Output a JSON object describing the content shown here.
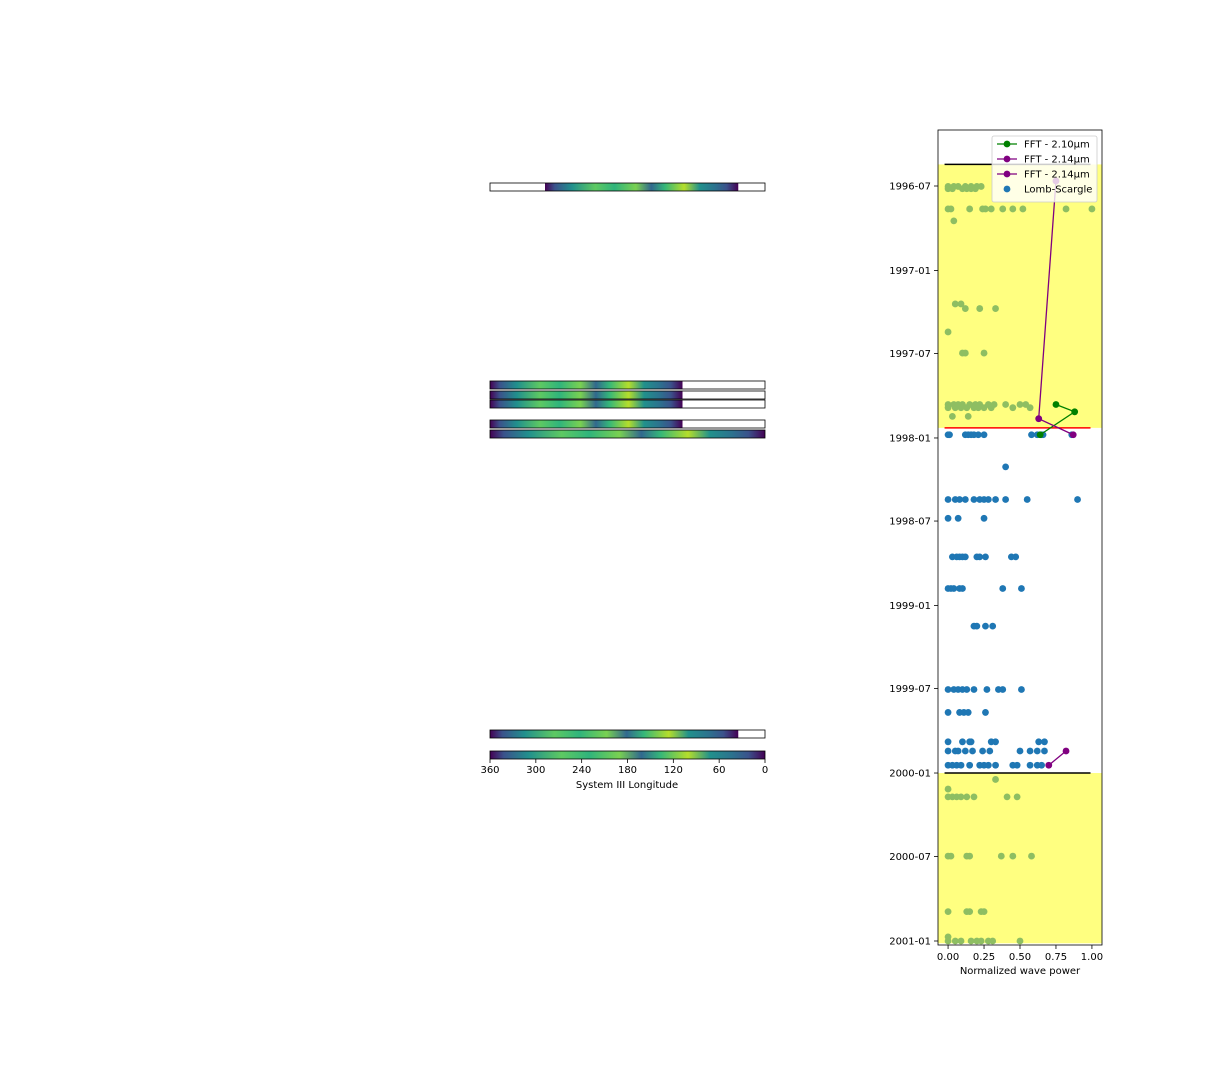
{
  "chart_data": [
    {
      "type": "heatmap",
      "xlabel": "System III Longitude",
      "xlim": [
        360,
        0
      ],
      "xticks": [
        360,
        300,
        240,
        180,
        120,
        60,
        0
      ],
      "colormap": "viridis",
      "strips": [
        {
          "coverage": [
            35,
            288
          ]
        },
        {
          "coverage": [
            108,
            360
          ]
        },
        {
          "coverage": [
            108,
            360
          ]
        },
        {
          "coverage": [
            108,
            360
          ]
        },
        {
          "coverage": [
            108,
            360
          ]
        },
        {
          "coverage": [
            0,
            360
          ]
        },
        {
          "coverage": [
            35,
            360
          ]
        },
        {
          "coverage": [
            0,
            360
          ]
        }
      ]
    },
    {
      "type": "scatter",
      "xlabel": "Normalized wave power",
      "xlim": [
        -0.07,
        1.07
      ],
      "xticks": [
        "0.00",
        "0.25",
        "0.50",
        "0.75",
        "1.00"
      ],
      "yticks": [
        "1996-07",
        "1997-01",
        "1997-07",
        "1998-01",
        "1998-07",
        "1999-01",
        "1999-07",
        "2000-01",
        "2000-07",
        "2001-01"
      ],
      "legend_position": "upper right",
      "shaded_spans": {
        "color": "#ffff80",
        "spans": [
          [
            "1996-05-15",
            "1997-12-10"
          ],
          [
            "2000-01-01",
            "2001-01-06"
          ]
        ]
      },
      "series": [
        {
          "name": "FFT - 2.10µm",
          "type": "line",
          "color": "#008000",
          "points": [
            [
              0.75,
              "1997-10-20"
            ],
            [
              0.88,
              "1997-11-05"
            ],
            [
              0.64,
              "1997-12-25"
            ]
          ]
        },
        {
          "name": "FFT - 2.14µm",
          "type": "line",
          "color": "#800080",
          "points": [
            [
              0.75,
              "1996-06-20"
            ],
            [
              0.63,
              "1997-11-20"
            ],
            [
              0.87,
              "1997-12-25"
            ]
          ]
        },
        {
          "name": "FFT - 2.14µm",
          "type": "line",
          "color": "#800080",
          "points": [
            [
              0.7,
              "1999-12-15"
            ],
            [
              0.82,
              "1999-11-14"
            ]
          ]
        },
        {
          "name": "Lomb-Scargle",
          "type": "scatter",
          "color": "#1f77b4",
          "groups": [
            {
              "date": "1997-12-25",
              "x": [
                0.0,
                0.01,
                0.12,
                0.14,
                0.16,
                0.18,
                0.21,
                0.25,
                0.58,
                0.62,
                0.65,
                0.66,
                0.86
              ]
            },
            {
              "date": "1998-03-05",
              "x": [
                0.4
              ]
            },
            {
              "date": "1998-05-15",
              "x": [
                0.0,
                0.05,
                0.08,
                0.12,
                0.18,
                0.22,
                0.25,
                0.28,
                0.33,
                0.4,
                0.55,
                0.9
              ]
            },
            {
              "date": "1998-06-25",
              "x": [
                0.0,
                0.07,
                0.25
              ]
            },
            {
              "date": "1998-09-17",
              "x": [
                0.03,
                0.06,
                0.08,
                0.1,
                0.12,
                0.2,
                0.22,
                0.26,
                0.44,
                0.47
              ]
            },
            {
              "date": "1998-11-25",
              "x": [
                0.0,
                0.02,
                0.04,
                0.08,
                0.1,
                0.38,
                0.51
              ]
            },
            {
              "date": "1999-02-15",
              "x": [
                0.18,
                0.2,
                0.26,
                0.31
              ]
            },
            {
              "date": "1999-07-03",
              "x": [
                0.0,
                0.04,
                0.07,
                0.1,
                0.13,
                0.18,
                0.27,
                0.35,
                0.38,
                0.51
              ]
            },
            {
              "date": "1999-08-22",
              "x": [
                0.0,
                0.08,
                0.11,
                0.14,
                0.26
              ]
            },
            {
              "date": "1999-10-25",
              "x": [
                0.0,
                0.1,
                0.15,
                0.16,
                0.3,
                0.33,
                0.63,
                0.67
              ]
            },
            {
              "date": "1999-11-14",
              "x": [
                0.0,
                0.05,
                0.07,
                0.12,
                0.17,
                0.24,
                0.29,
                0.5,
                0.57,
                0.62,
                0.67
              ]
            },
            {
              "date": "1999-12-15",
              "x": [
                0.0,
                0.03,
                0.06,
                0.09,
                0.15,
                0.22,
                0.25,
                0.28,
                0.33,
                0.45,
                0.48,
                0.57,
                0.62,
                0.65
              ]
            }
          ]
        },
        {
          "name": "",
          "type": "scatter",
          "color": "#8ebe62",
          "groups": [
            {
              "date": "1996-07-02",
              "x": [
                0.0,
                0.04,
                0.07,
                0.12,
                0.16,
                0.2,
                0.23
              ]
            },
            {
              "date": "1996-07-07",
              "x": [
                0.0,
                0.03,
                0.1,
                0.13,
                0.16,
                0.19
              ]
            },
            {
              "date": "1996-08-20",
              "x": [
                0.0,
                0.02,
                0.15,
                0.24,
                0.26,
                0.3,
                0.38,
                0.45,
                0.52,
                0.82,
                1.0
              ]
            },
            {
              "date": "1996-09-15",
              "x": [
                0.04
              ]
            },
            {
              "date": "1997-03-15",
              "x": [
                0.05,
                0.09
              ]
            },
            {
              "date": "1997-03-25",
              "x": [
                0.12,
                0.22,
                0.33
              ]
            },
            {
              "date": "1997-05-15",
              "x": [
                0.0
              ]
            },
            {
              "date": "1997-06-30",
              "x": [
                0.1,
                0.12,
                0.25
              ]
            },
            {
              "date": "1997-10-20",
              "x": [
                0.0,
                0.04,
                0.07,
                0.1,
                0.15,
                0.19,
                0.22,
                0.28,
                0.32,
                0.4,
                0.5,
                0.54
              ]
            },
            {
              "date": "1997-10-27",
              "x": [
                0.0,
                0.05,
                0.09,
                0.13,
                0.18,
                0.21,
                0.25,
                0.3,
                0.45,
                0.57
              ]
            },
            {
              "date": "1997-11-15",
              "x": [
                0.03,
                0.14
              ]
            },
            {
              "date": "2000-01-15",
              "x": [
                0.33
              ]
            },
            {
              "date": "2000-02-05",
              "x": [
                0.0
              ]
            },
            {
              "date": "2000-02-22",
              "x": [
                0.0,
                0.03,
                0.06,
                0.09,
                0.13,
                0.18,
                0.41,
                0.48
              ]
            },
            {
              "date": "2000-06-30",
              "x": [
                0.0,
                0.02,
                0.13,
                0.15,
                0.37,
                0.45,
                0.58
              ]
            },
            {
              "date": "2000-10-29",
              "x": [
                0.0,
                0.13,
                0.15,
                0.23,
                0.25
              ]
            },
            {
              "date": "2000-12-23",
              "x": [
                0.0
              ]
            },
            {
              "date": "2001-01-01",
              "x": [
                0.0,
                0.05,
                0.09,
                0.16,
                0.2,
                0.23,
                0.28,
                0.31,
                0.5
              ]
            }
          ]
        }
      ],
      "hlines": [
        {
          "date": "1996-05-15",
          "xmin": 0.04,
          "xmax": 0.93,
          "color": "#000000"
        },
        {
          "date": "1997-12-10",
          "xmin": 0.04,
          "xmax": 0.93,
          "color": "#ff0000"
        },
        {
          "date": "2000-01-01",
          "xmin": 0.04,
          "xmax": 0.93,
          "color": "#000000"
        }
      ]
    }
  ]
}
